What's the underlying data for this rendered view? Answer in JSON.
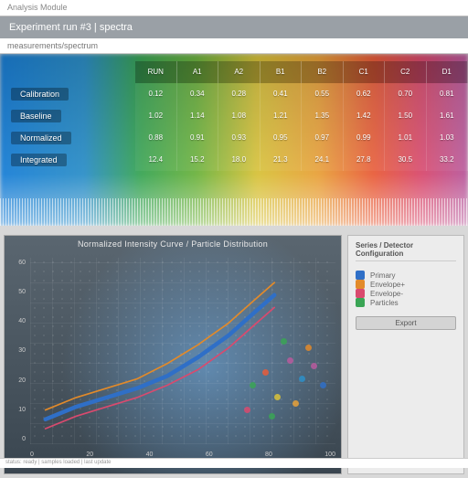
{
  "page": {
    "app_label": "Analysis Module",
    "header_title": "Experiment run #3 | spectra",
    "breadcrumb": "measurements/spectrum",
    "footer": "status: ready   |   samples loaded   |   last update"
  },
  "top_table": {
    "columns": [
      "RUN",
      "A1",
      "A2",
      "B1",
      "B2",
      "C1",
      "C2",
      "D1"
    ],
    "row_labels": [
      "Calibration",
      "Baseline",
      "Normalized",
      "Integrated"
    ],
    "rows": [
      [
        "0.12",
        "0.34",
        "0.28",
        "0.41",
        "0.55",
        "0.62",
        "0.70",
        "0.81"
      ],
      [
        "1.02",
        "1.14",
        "1.08",
        "1.21",
        "1.35",
        "1.42",
        "1.50",
        "1.61"
      ],
      [
        "0.88",
        "0.91",
        "0.93",
        "0.95",
        "0.97",
        "0.99",
        "1.01",
        "1.03"
      ],
      [
        "12.4",
        "15.2",
        "18.0",
        "21.3",
        "24.1",
        "27.8",
        "30.5",
        "33.2"
      ]
    ],
    "gradient_colors": [
      "#1a7fd6",
      "#2d8fc8",
      "#3aa555",
      "#6db33f",
      "#d8c23a",
      "#e8a13a",
      "#e85c3a",
      "#d84a6e",
      "#b85a9e"
    ]
  },
  "chart": {
    "type": "line-scatter",
    "title": "Normalized Intensity Curve / Particle Distribution",
    "background_color": "#3a4650",
    "grid_color": "#5a6670",
    "text_color": "#cccccc",
    "title_fontsize": 9,
    "tick_fontsize": 7,
    "xlim": [
      0,
      100
    ],
    "ylim": [
      0,
      60
    ],
    "y_ticks": [
      "60",
      "50",
      "40",
      "30",
      "20",
      "10",
      "0"
    ],
    "x_ticks": [
      "0",
      "20",
      "40",
      "60",
      "80",
      "100"
    ],
    "series": [
      {
        "name": "main",
        "color": "#2f6fc7",
        "width": 8,
        "points": [
          [
            5,
            8
          ],
          [
            15,
            12
          ],
          [
            25,
            15
          ],
          [
            35,
            18
          ],
          [
            45,
            22
          ],
          [
            55,
            28
          ],
          [
            65,
            35
          ],
          [
            73,
            42
          ],
          [
            80,
            48
          ]
        ]
      },
      {
        "name": "upper",
        "color": "#e28a2a",
        "width": 3,
        "points": [
          [
            5,
            11
          ],
          [
            15,
            15
          ],
          [
            25,
            18
          ],
          [
            35,
            21
          ],
          [
            45,
            26
          ],
          [
            55,
            32
          ],
          [
            65,
            39
          ],
          [
            73,
            46
          ],
          [
            80,
            52
          ]
        ]
      },
      {
        "name": "lower",
        "color": "#d94a6e",
        "width": 3,
        "points": [
          [
            5,
            5
          ],
          [
            15,
            9
          ],
          [
            25,
            12
          ],
          [
            35,
            15
          ],
          [
            45,
            19
          ],
          [
            55,
            24
          ],
          [
            65,
            31
          ],
          [
            73,
            38
          ],
          [
            80,
            44
          ]
        ]
      }
    ],
    "scatter": [
      {
        "x": 72,
        "y": 18,
        "c": "#3aa555"
      },
      {
        "x": 76,
        "y": 22,
        "c": "#e85c3a"
      },
      {
        "x": 80,
        "y": 14,
        "c": "#d8c23a"
      },
      {
        "x": 84,
        "y": 26,
        "c": "#b85a9e"
      },
      {
        "x": 88,
        "y": 20,
        "c": "#2d8fc8"
      },
      {
        "x": 90,
        "y": 30,
        "c": "#e28a2a"
      },
      {
        "x": 70,
        "y": 10,
        "c": "#d94a6e"
      },
      {
        "x": 78,
        "y": 8,
        "c": "#3aa555"
      },
      {
        "x": 86,
        "y": 12,
        "c": "#e8a13a"
      },
      {
        "x": 92,
        "y": 24,
        "c": "#b85a9e"
      },
      {
        "x": 95,
        "y": 18,
        "c": "#2f6fc7"
      },
      {
        "x": 82,
        "y": 32,
        "c": "#3aa555"
      }
    ]
  },
  "legend": {
    "title": "Series / Detector Configuration",
    "items": [
      {
        "label": "Primary",
        "color": "#2f6fc7"
      },
      {
        "label": "Envelope+",
        "color": "#e28a2a"
      },
      {
        "label": "Envelope-",
        "color": "#d94a6e"
      },
      {
        "label": "Particles",
        "color": "#3aa555"
      }
    ],
    "button_label": "Export"
  }
}
